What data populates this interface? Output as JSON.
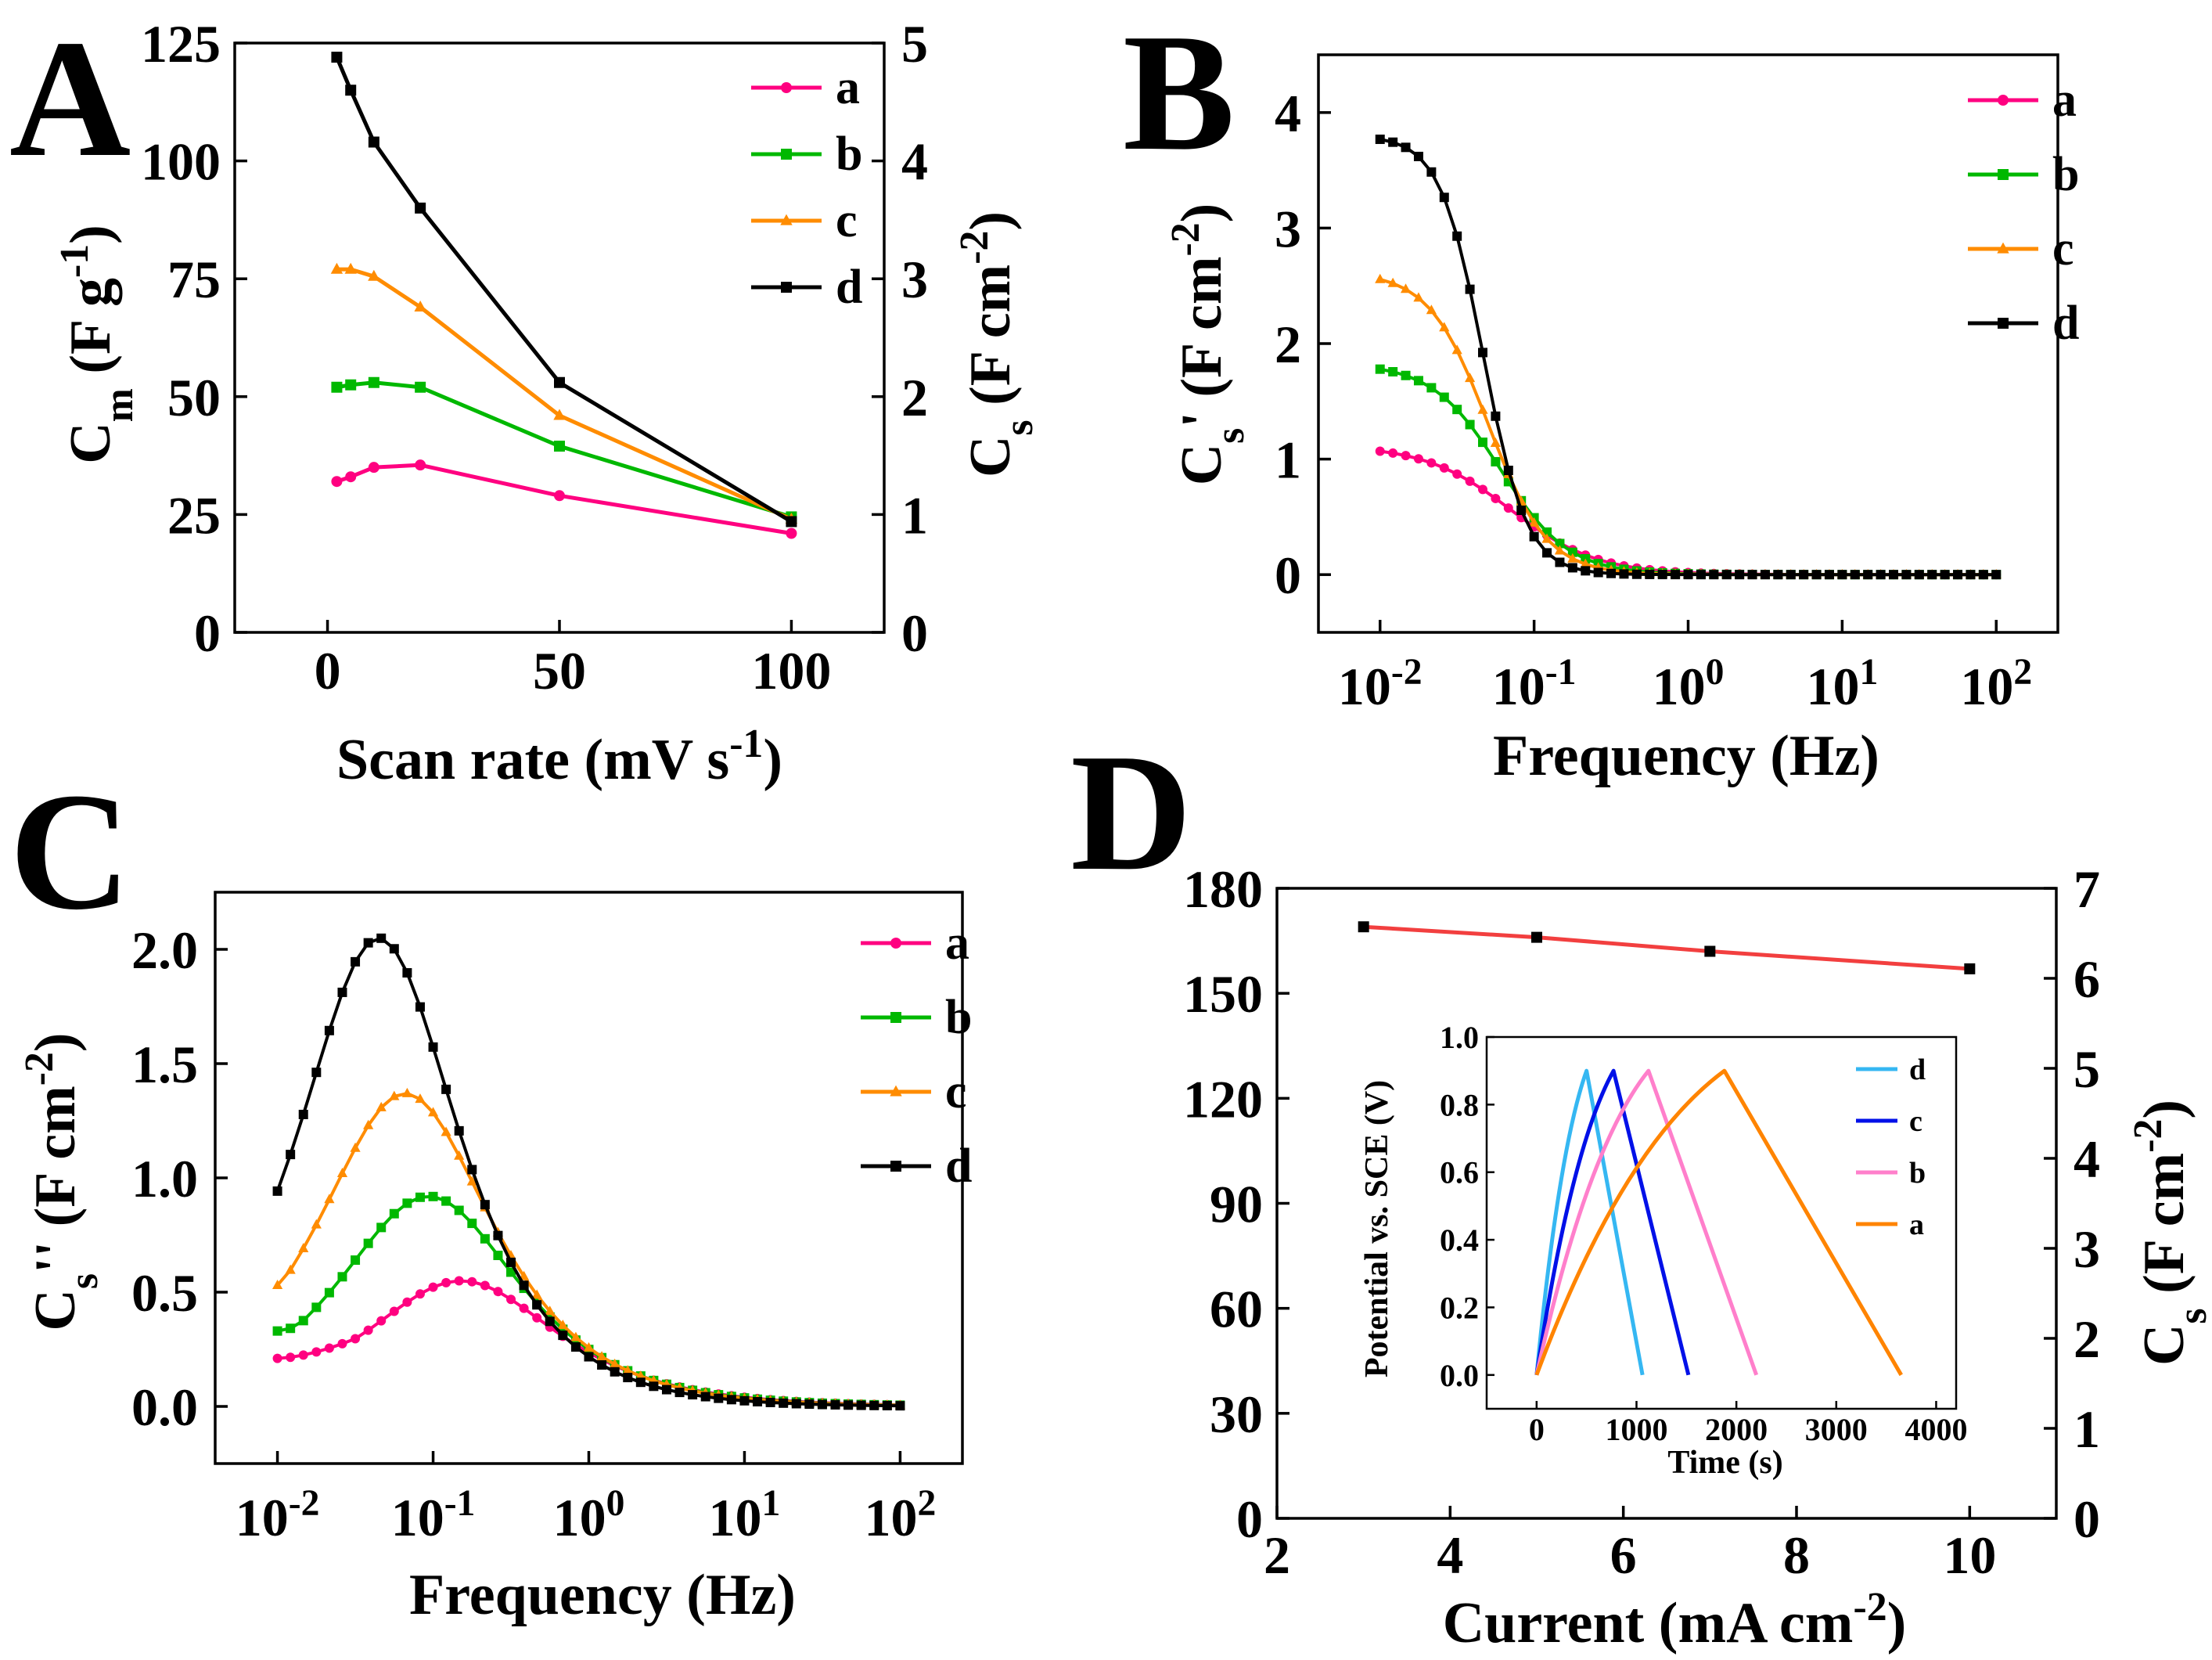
{
  "colors": {
    "a": "#FF0080",
    "b": "#00B800",
    "c": "#FF8C00",
    "d": "#000000",
    "fit_line": "#F23F3F",
    "inset_d": "#35B7F2",
    "inset_c": "#0010E8",
    "inset_b": "#FF7FCB",
    "inset_a": "#FF8400"
  },
  "chart_data": [
    {
      "panel": "A",
      "type": "line",
      "xlabel": "Scan rate (mV s-1)",
      "ylabel_left": "Cm (F g-1)",
      "ylabel_right": "Cs (F cm-2)",
      "xlim": [
        -20,
        120
      ],
      "ylim": [
        0,
        125
      ],
      "ylim_right": [
        0,
        5
      ],
      "xticks": [
        "0",
        "50",
        "100"
      ],
      "yticks": [
        "0",
        "25",
        "50",
        "75",
        "100",
        "125"
      ],
      "yticks_right": [
        "0",
        "1",
        "2",
        "3",
        "4",
        "5"
      ],
      "legend": [
        "a",
        "b",
        "c",
        "d"
      ],
      "series": [
        {
          "name": "a",
          "x": [
            2,
            5,
            10,
            20,
            50,
            100
          ],
          "values": [
            32,
            33,
            35,
            35.5,
            29,
            21
          ]
        },
        {
          "name": "b",
          "x": [
            2,
            5,
            10,
            20,
            50,
            100
          ],
          "values": [
            52,
            52.5,
            53,
            52,
            39.5,
            24.5
          ]
        },
        {
          "name": "c",
          "x": [
            2,
            5,
            10,
            20,
            50,
            100
          ],
          "values": [
            77,
            77,
            75.5,
            69,
            46,
            24
          ]
        },
        {
          "name": "d",
          "x": [
            2,
            5,
            10,
            20,
            50,
            100
          ],
          "values": [
            122,
            115,
            104,
            90,
            53,
            23.5
          ]
        }
      ]
    },
    {
      "panel": "B",
      "type": "line",
      "xscale": "log",
      "xlabel": "Frequency (Hz)",
      "ylabel": "Cs' (F cm-2)",
      "xlim_log10": [
        -2.4,
        2.4
      ],
      "ylim": [
        -0.5,
        4.5
      ],
      "xticks": [
        "10-2",
        "10-1",
        "100",
        "101",
        "102"
      ],
      "yticks": [
        "0",
        "1",
        "2",
        "3",
        "4"
      ],
      "legend": [
        "a",
        "b",
        "c",
        "d"
      ],
      "series": [
        {
          "name": "a",
          "plateau": 1.12,
          "log10_fc": -1.15,
          "width": 0.28
        },
        {
          "name": "b",
          "plateau": 1.83,
          "log10_fc": -1.22,
          "width": 0.22
        },
        {
          "name": "c",
          "plateau": 2.62,
          "log10_fc": -1.3,
          "width": 0.19
        },
        {
          "name": "d",
          "plateau": 3.8,
          "log10_fc": -1.33,
          "width": 0.14
        }
      ]
    },
    {
      "panel": "C",
      "type": "line",
      "xscale": "log",
      "xlabel": "Frequency (Hz)",
      "ylabel": "Cs'' (F cm-2)",
      "xlim_log10": [
        -2.4,
        2.4
      ],
      "ylim": [
        -0.25,
        2.25
      ],
      "xticks": [
        "10-2",
        "10-1",
        "100",
        "101",
        "102"
      ],
      "yticks": [
        "0.0",
        "0.5",
        "1.0",
        "1.5",
        "2.0"
      ],
      "legend": [
        "a",
        "b",
        "c",
        "d"
      ],
      "series": [
        {
          "name": "a",
          "peak": 0.55,
          "log10_fpeak": -0.82,
          "start": 0.21,
          "width": 0.55
        },
        {
          "name": "b",
          "peak": 0.92,
          "log10_fpeak": -1.03,
          "start": 0.33,
          "width": 0.52
        },
        {
          "name": "c",
          "peak": 1.37,
          "log10_fpeak": -1.18,
          "start": 0.53,
          "width": 0.5
        },
        {
          "name": "d",
          "peak": 2.05,
          "log10_fpeak": -1.35,
          "start": 0.94,
          "width": 0.46
        }
      ]
    },
    {
      "panel": "D",
      "type": "line",
      "xlabel": "Current (mA cm-2)",
      "ylabel_right": "Cs (F cm-2)",
      "xlim": [
        2,
        11
      ],
      "ylim": [
        0,
        180
      ],
      "ylim_right": [
        0,
        7
      ],
      "xticks": [
        "2",
        "4",
        "6",
        "8",
        "10"
      ],
      "yticks": [
        "0",
        "30",
        "60",
        "90",
        "120",
        "150",
        "180"
      ],
      "yticks_right": [
        "0",
        "1",
        "2",
        "3",
        "4",
        "5",
        "6",
        "7"
      ],
      "series": [
        {
          "name": "Cs",
          "x": [
            3,
            5,
            7,
            10
          ],
          "values": [
            169,
            166,
            162,
            157
          ]
        }
      ],
      "inset": {
        "type": "line",
        "xlabel": "Time (s)",
        "ylabel": "Potential vs. SCE (V)",
        "xlim": [
          -500,
          4200
        ],
        "ylim": [
          -0.1,
          1.0
        ],
        "xticks": [
          "0",
          "1000",
          "2000",
          "3000",
          "4000"
        ],
        "yticks": [
          "0.0",
          "0.2",
          "0.4",
          "0.6",
          "0.8",
          "1.0"
        ],
        "legend": [
          "d",
          "c",
          "b",
          "a"
        ],
        "series": [
          {
            "name": "d",
            "x": [
              0,
              500,
              1060
            ],
            "values": [
              0,
              0.9,
              0
            ]
          },
          {
            "name": "c",
            "x": [
              0,
              770,
              1520
            ],
            "values": [
              0,
              0.9,
              0
            ]
          },
          {
            "name": "b",
            "x": [
              0,
              1120,
              2200
            ],
            "values": [
              0,
              0.9,
              0
            ]
          },
          {
            "name": "a",
            "x": [
              0,
              1880,
              3650
            ],
            "values": [
              0,
              0.9,
              0
            ]
          }
        ]
      }
    }
  ]
}
